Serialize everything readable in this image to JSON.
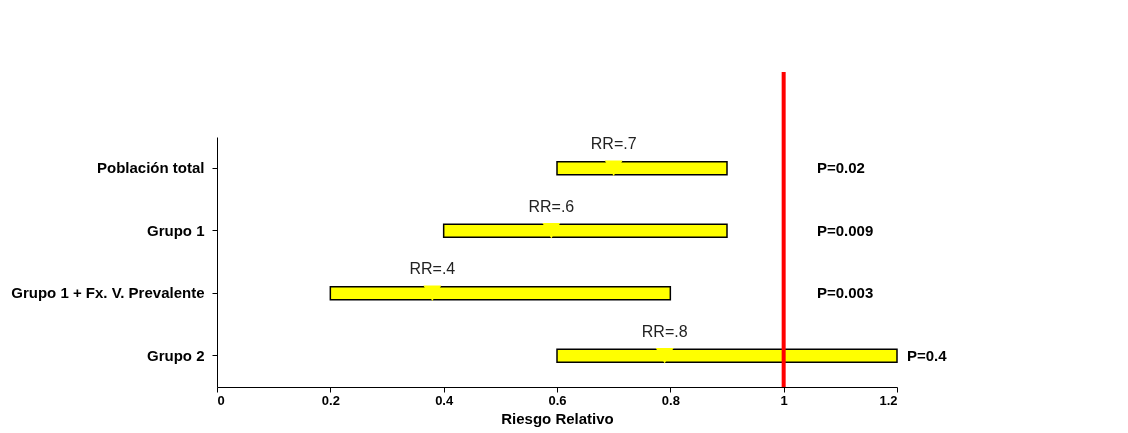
{
  "chart_data": {
    "type": "bar",
    "orientation": "horizontal",
    "categories": [
      "Población total",
      "Grupo 1",
      "Grupo 1 + Fx. V. Prevalente",
      "Grupo 2"
    ],
    "base": [
      0.6,
      0.4,
      0.2,
      0.6
    ],
    "values": [
      0.3,
      0.5,
      0.6,
      0.6
    ],
    "color": "#ffff00",
    "series": [
      {
        "type": "scatter",
        "x": [
          "Población total",
          "Grupo 1",
          "Grupo 1 + Fx. V. Prevalente",
          "Grupo 2"
        ],
        "values": [
          0.7,
          0.59,
          0.38,
          0.79
        ],
        "color": "#ffff00"
      }
    ],
    "marker": "triangle",
    "xlabel": "Riesgo Relativo",
    "xlim": [
      0,
      1.2
    ],
    "xticks": [
      0,
      0.2,
      0.4,
      0.6,
      0.8,
      1,
      1.2
    ],
    "ref_lines": [
      {
        "axis": "x",
        "value": 1,
        "color": "#ff0000"
      }
    ],
    "grid": false,
    "annotations": [
      {
        "text": "RR=.7",
        "x": 0.7,
        "y": "Población total"
      },
      {
        "text": "RR=.6",
        "x": 0.59,
        "y": "Grupo 1"
      },
      {
        "text": "RR=.4",
        "x": 0.38,
        "y": "Grupo 1 + Fx. V. Prevalente"
      },
      {
        "text": "RR=.8",
        "x": 0.79,
        "y": "Grupo 2"
      },
      "P=0.02",
      "P=0.009",
      "P=0.003",
      "P=0.4"
    ]
  }
}
